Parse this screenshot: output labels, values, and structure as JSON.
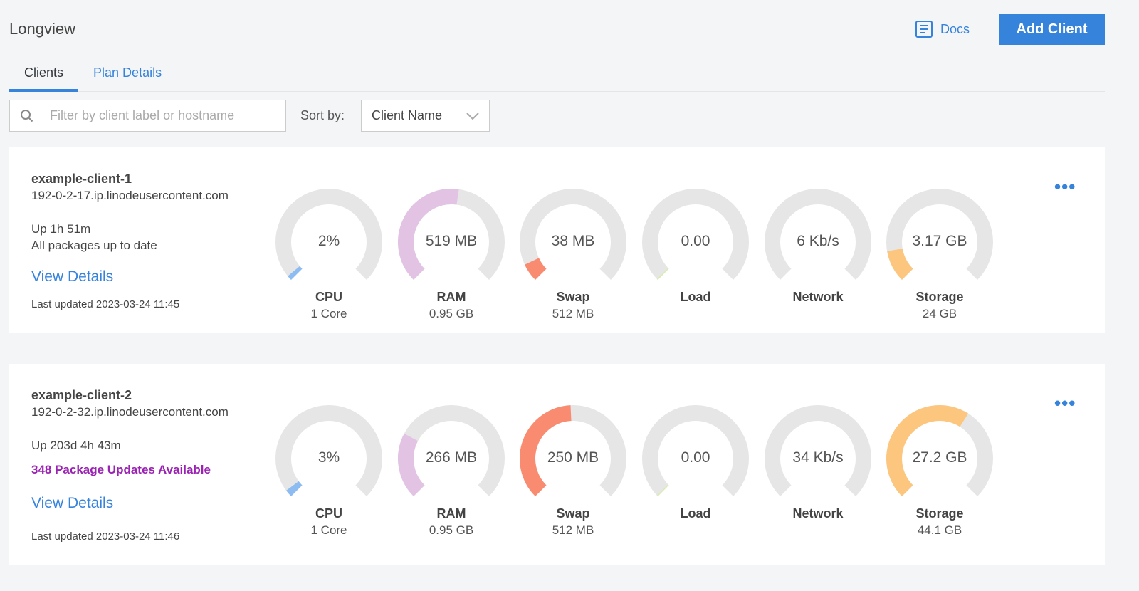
{
  "header": {
    "title": "Longview",
    "docs_label": "Docs",
    "add_client_label": "Add Client"
  },
  "tabs": [
    {
      "label": "Clients",
      "active": true
    },
    {
      "label": "Plan Details",
      "active": false
    }
  ],
  "filter": {
    "placeholder": "Filter by client label or hostname",
    "value": ""
  },
  "sort": {
    "label": "Sort by:",
    "selected": "Client Name"
  },
  "colors": {
    "accent": "#3683dc",
    "track": "#e6e6e6",
    "cpu": "#8cbcf2",
    "ram": "#e2c3e4",
    "swap": "#f98c70",
    "load": "#d8ecb0",
    "network": "#d8ecb0",
    "storage": "#fdc67f",
    "package_warning": "#9b23b3"
  },
  "clients": [
    {
      "name": "example-client-1",
      "host": "192-0-2-17.ip.linodeusercontent.com",
      "uptime": "Up 1h 51m",
      "packages": "All packages up to date",
      "packages_warning": false,
      "view_details": "View Details",
      "last_updated": "Last updated 2023-03-24 11:45",
      "more_label": "•••",
      "gauges": [
        {
          "key": "cpu",
          "value": "2%",
          "label": "CPU",
          "sub": "1 Core",
          "fill": 0.02
        },
        {
          "key": "ram",
          "value": "519 MB",
          "label": "RAM",
          "sub": "0.95 GB",
          "fill": 0.53
        },
        {
          "key": "swap",
          "value": "38 MB",
          "label": "Swap",
          "sub": "512 MB",
          "fill": 0.074
        },
        {
          "key": "load",
          "value": "0.00",
          "label": "Load",
          "sub": "",
          "fill": 0.005
        },
        {
          "key": "network",
          "value": "6 Kb/s",
          "label": "Network",
          "sub": "",
          "fill": 0
        },
        {
          "key": "storage",
          "value": "3.17 GB",
          "label": "Storage",
          "sub": "24 GB",
          "fill": 0.13
        }
      ]
    },
    {
      "name": "example-client-2",
      "host": "192-0-2-32.ip.linodeusercontent.com",
      "uptime": "Up 203d 4h 43m",
      "packages": "348 Package Updates Available",
      "packages_warning": true,
      "view_details": "View Details",
      "last_updated": "Last updated 2023-03-24 11:46",
      "more_label": "•••",
      "gauges": [
        {
          "key": "cpu",
          "value": "3%",
          "label": "CPU",
          "sub": "1 Core",
          "fill": 0.03
        },
        {
          "key": "ram",
          "value": "266 MB",
          "label": "RAM",
          "sub": "0.95 GB",
          "fill": 0.27
        },
        {
          "key": "swap",
          "value": "250 MB",
          "label": "Swap",
          "sub": "512 MB",
          "fill": 0.49
        },
        {
          "key": "load",
          "value": "0.00",
          "label": "Load",
          "sub": "",
          "fill": 0.005
        },
        {
          "key": "network",
          "value": "34 Kb/s",
          "label": "Network",
          "sub": "",
          "fill": 0
        },
        {
          "key": "storage",
          "value": "27.2 GB",
          "label": "Storage",
          "sub": "44.1 GB",
          "fill": 0.62
        }
      ]
    }
  ]
}
